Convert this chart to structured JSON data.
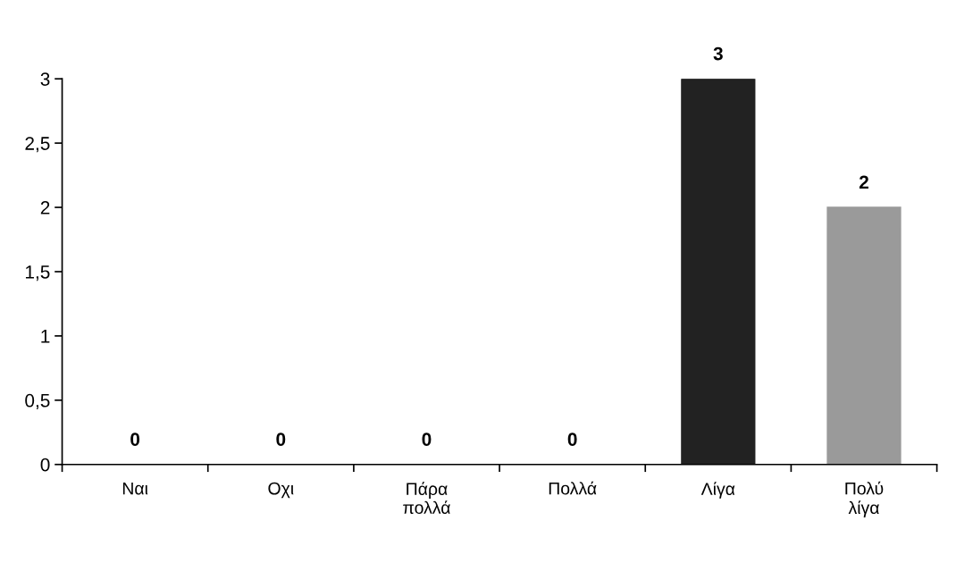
{
  "chart_data": {
    "type": "bar",
    "categories": [
      "Ναι",
      "Οχι",
      "Πάρα πολλά",
      "Πολλά",
      "Λίγα",
      "Πολύ λίγα"
    ],
    "values": [
      0,
      0,
      0,
      0,
      3,
      2
    ],
    "colors": [
      "#222222",
      "#222222",
      "#222222",
      "#222222",
      "#222222",
      "#9a9a9a"
    ],
    "ylim": [
      0,
      3
    ],
    "yticks": [
      0,
      {
        "value": 0.5,
        "label": "0,5"
      },
      1,
      {
        "value": 1.5,
        "label": "1,5"
      },
      2,
      {
        "value": 2.5,
        "label": "2,5"
      },
      3
    ],
    "data_labels": true,
    "grid": false,
    "legend": false
  }
}
